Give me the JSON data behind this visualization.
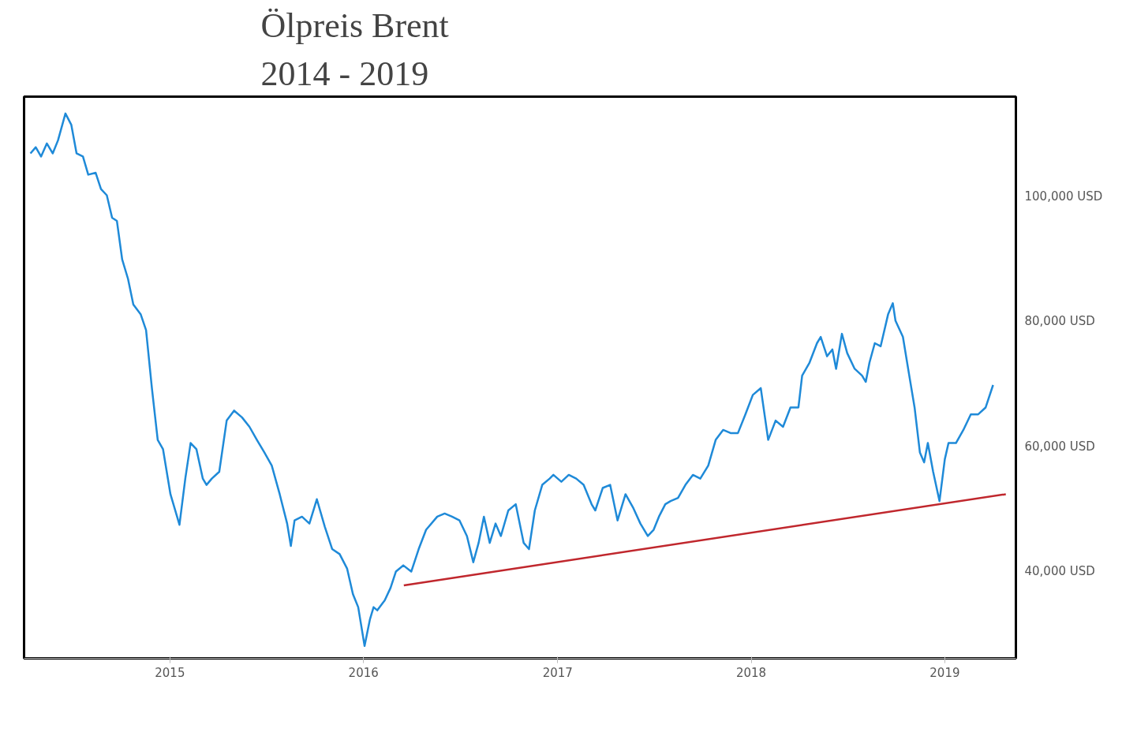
{
  "chart_data": {
    "type": "line",
    "title": "Ölpreis Brent",
    "subtitle": "2014 - 2019",
    "xlim": [
      "2014-04-01",
      "2019-05-15"
    ],
    "xticks": [
      "2015",
      "2016",
      "2017",
      "2018",
      "2019"
    ],
    "ylim": [
      26000,
      116000
    ],
    "yticks": [
      {
        "value": 40000,
        "label": "40,000 USD"
      },
      {
        "value": 60000,
        "label": "60,000 USD"
      },
      {
        "value": 80000,
        "label": "80,000 USD"
      },
      {
        "value": 100000,
        "label": "100,000 USD"
      }
    ],
    "line_style": "solid",
    "marker": "none",
    "series": [
      {
        "color": "#1f8ad8",
        "x": [
          "2014-04-13",
          "2014-04-23",
          "2014-05-03",
          "2014-05-14",
          "2014-05-25",
          "2014-06-04",
          "2014-06-18",
          "2014-06-29",
          "2014-07-09",
          "2014-07-21",
          "2014-07-31",
          "2014-08-14",
          "2014-08-24",
          "2014-09-04",
          "2014-09-14",
          "2014-09-23",
          "2014-10-03",
          "2014-10-14",
          "2014-10-24",
          "2014-11-07",
          "2014-11-17",
          "2014-11-28",
          "2014-12-09",
          "2014-12-19",
          "2015-01-02",
          "2015-01-19",
          "2015-01-30",
          "2015-02-09",
          "2015-02-20",
          "2015-03-04",
          "2015-03-11",
          "2015-03-21",
          "2015-04-04",
          "2015-04-18",
          "2015-05-02",
          "2015-05-17",
          "2015-05-31",
          "2015-06-14",
          "2015-06-28",
          "2015-07-12",
          "2015-07-27",
          "2015-08-10",
          "2015-08-17",
          "2015-08-24",
          "2015-09-07",
          "2015-09-21",
          "2015-10-05",
          "2015-10-20",
          "2015-11-03",
          "2015-11-17",
          "2015-12-01",
          "2015-12-12",
          "2015-12-22",
          "2016-01-03",
          "2016-01-13",
          "2016-01-20",
          "2016-01-27",
          "2016-02-10",
          "2016-02-21",
          "2016-03-02",
          "2016-03-16",
          "2016-03-31",
          "2016-04-14",
          "2016-04-28",
          "2016-05-19",
          "2016-06-02",
          "2016-06-16",
          "2016-06-30",
          "2016-07-14",
          "2016-07-26",
          "2016-08-05",
          "2016-08-15",
          "2016-08-26",
          "2016-09-06",
          "2016-09-16",
          "2016-09-30",
          "2016-10-14",
          "2016-10-29",
          "2016-11-08",
          "2016-11-19",
          "2016-12-03",
          "2016-12-17",
          "2016-12-24",
          "2017-01-08",
          "2017-01-22",
          "2017-02-05",
          "2017-02-19",
          "2017-03-06",
          "2017-03-13",
          "2017-03-27",
          "2017-04-10",
          "2017-04-24",
          "2017-05-09",
          "2017-05-23",
          "2017-06-06",
          "2017-06-20",
          "2017-07-01",
          "2017-07-11",
          "2017-07-23",
          "2017-08-02",
          "2017-08-16",
          "2017-08-30",
          "2017-09-13",
          "2017-09-27",
          "2017-10-12",
          "2017-10-26",
          "2017-11-09",
          "2017-11-23",
          "2017-12-07",
          "2017-12-21",
          "2018-01-04",
          "2018-01-19",
          "2018-02-02",
          "2018-02-16",
          "2018-03-02",
          "2018-03-16",
          "2018-03-31",
          "2018-04-07",
          "2018-04-21",
          "2018-05-05",
          "2018-05-12",
          "2018-05-24",
          "2018-06-03",
          "2018-06-10",
          "2018-06-21",
          "2018-07-01",
          "2018-07-15",
          "2018-07-29",
          "2018-08-05",
          "2018-08-12",
          "2018-08-22",
          "2018-09-02",
          "2018-09-16",
          "2018-09-25",
          "2018-09-30",
          "2018-10-14",
          "2018-10-26",
          "2018-11-05",
          "2018-11-15",
          "2018-11-23",
          "2018-11-30",
          "2018-12-10",
          "2018-12-22",
          "2019-01-01",
          "2019-01-08",
          "2019-01-22",
          "2019-02-05",
          "2019-02-19",
          "2019-03-05",
          "2019-03-19",
          "2019-04-02"
        ],
        "values": [
          106900,
          107900,
          106400,
          108500,
          106900,
          109000,
          113300,
          111500,
          106900,
          106400,
          103500,
          103800,
          101200,
          100200,
          96600,
          96100,
          89900,
          86800,
          82700,
          81100,
          78600,
          69300,
          61000,
          59500,
          52300,
          47400,
          54800,
          60500,
          59500,
          54800,
          53800,
          54800,
          55900,
          64100,
          65700,
          64600,
          63100,
          61000,
          59000,
          56900,
          52300,
          47600,
          44000,
          48100,
          48700,
          47600,
          51500,
          47100,
          43500,
          42700,
          40400,
          36300,
          34200,
          28000,
          32200,
          34200,
          33700,
          35300,
          37300,
          39900,
          40900,
          39900,
          43500,
          46600,
          48700,
          49200,
          48700,
          48100,
          45600,
          41400,
          44500,
          48700,
          44500,
          47600,
          45600,
          49700,
          50700,
          44500,
          43500,
          49700,
          53800,
          54800,
          55400,
          54300,
          55400,
          54800,
          53800,
          50700,
          49700,
          53300,
          53800,
          48100,
          52300,
          50200,
          47600,
          45600,
          46600,
          48700,
          50700,
          51200,
          51700,
          53800,
          55400,
          54800,
          56900,
          61000,
          62600,
          62100,
          62100,
          65100,
          68200,
          69300,
          61000,
          64100,
          63100,
          66200,
          66200,
          71300,
          73400,
          76500,
          77500,
          74400,
          75500,
          72400,
          78000,
          74900,
          72400,
          71300,
          70300,
          73400,
          76500,
          76000,
          81100,
          82900,
          80100,
          77500,
          71300,
          66200,
          59000,
          57400,
          60500,
          55900,
          51200,
          57900,
          60500,
          60500,
          62600,
          65100,
          65100,
          66200,
          69800
        ]
      },
      {
        "type": "line",
        "color": "#c0272d",
        "x": [
          "2016-03-17",
          "2019-04-26"
        ],
        "values": [
          37700,
          52300
        ]
      }
    ]
  }
}
